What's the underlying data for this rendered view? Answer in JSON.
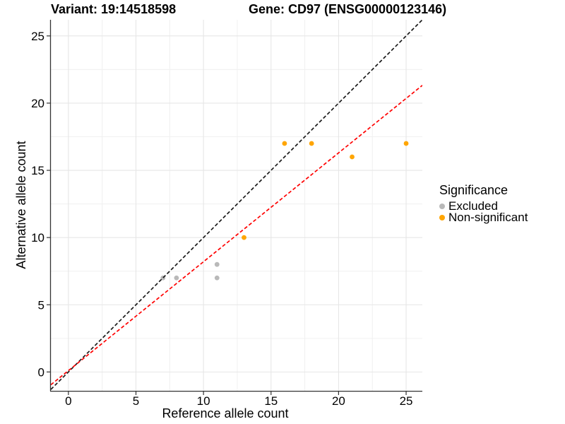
{
  "figure": {
    "title_variant": "Variant: 19:14518598",
    "title_gene": "Gene: CD97 (ENSG00000123146)"
  },
  "chart_data": {
    "type": "scatter",
    "title": "Variant: 19:14518598   Gene: CD97 (ENSG00000123146)",
    "xlabel": "Reference allele count",
    "ylabel": "Alternative allele count",
    "xlim": [
      -1.3,
      26.2
    ],
    "ylim": [
      -1.4,
      26.2
    ],
    "x_ticks": [
      0,
      5,
      10,
      15,
      20,
      25
    ],
    "y_ticks": [
      0,
      5,
      10,
      15,
      20,
      25
    ],
    "x_minor_gridlines": [
      2.5,
      7.5,
      12.5,
      17.5,
      22.5
    ],
    "y_minor_gridlines": [
      2.5,
      7.5,
      12.5,
      17.5,
      22.5
    ],
    "grid": true,
    "legend_position": "right",
    "series": [
      {
        "name": "Excluded",
        "color": "#b9b9b9",
        "points": [
          [
            7,
            7
          ],
          [
            8,
            7
          ],
          [
            11,
            7
          ],
          [
            11,
            8
          ]
        ]
      },
      {
        "name": "Non-significant",
        "color": "#ffa500",
        "points": [
          [
            13,
            10
          ],
          [
            16,
            17
          ],
          [
            18,
            17
          ],
          [
            21,
            16
          ],
          [
            25,
            17
          ]
        ]
      }
    ],
    "ablines": [
      {
        "name": "identity-line",
        "color": "#1a1a1a",
        "slope": 1,
        "intercept": 0,
        "dash": "5 3"
      },
      {
        "name": "regression-line",
        "color": "#ff0000",
        "slope": 0.81,
        "intercept": 0.1,
        "dash": "5 3"
      }
    ]
  },
  "legend": {
    "title": "Significance",
    "items": [
      {
        "label": "Excluded",
        "color": "#b9b9b9"
      },
      {
        "label": "Non-significant",
        "color": "#ffa500"
      }
    ]
  },
  "colors": {
    "background": "#ffffff",
    "grid_major": "#e6e6e6",
    "grid_minor": "#f0f0f0",
    "axis": "#333333",
    "tick_text": "#000000"
  }
}
